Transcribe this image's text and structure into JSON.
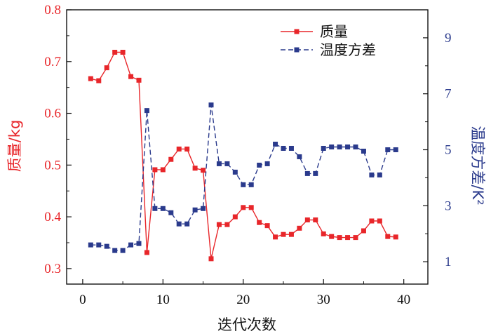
{
  "chart_data": {
    "type": "line",
    "xlabel": "迭代次数",
    "ylabel_left": "质量/kg",
    "ylabel_right": "温度方差/K²",
    "xlim": [
      -2,
      43
    ],
    "ylim_left": [
      0.27,
      0.8
    ],
    "ylim_right": [
      0.2,
      10.0
    ],
    "x_ticks": [
      0,
      10,
      20,
      30,
      40
    ],
    "y_left_ticks": [
      "0.3",
      "0.4",
      "0.5",
      "0.6",
      "0.7",
      "0.8"
    ],
    "y_right_ticks": [
      "1",
      "3",
      "5",
      "7",
      "9"
    ],
    "legend_position": "top-right",
    "grid": false,
    "series": [
      {
        "name": "质量",
        "axis": "left",
        "color": "#e8262a",
        "line_style": "solid",
        "marker": "square",
        "x": [
          1,
          2,
          3,
          4,
          5,
          6,
          7,
          8,
          9,
          10,
          11,
          12,
          13,
          14,
          15,
          16,
          17,
          18,
          19,
          20,
          21,
          22,
          23,
          24,
          25,
          26,
          27,
          28,
          29,
          30,
          31,
          32,
          33,
          34,
          35,
          36,
          37,
          38,
          39
        ],
        "values": [
          0.667,
          0.663,
          0.688,
          0.718,
          0.718,
          0.671,
          0.664,
          0.331,
          0.491,
          0.491,
          0.511,
          0.531,
          0.531,
          0.494,
          0.49,
          0.319,
          0.385,
          0.385,
          0.4,
          0.418,
          0.418,
          0.389,
          0.383,
          0.361,
          0.366,
          0.366,
          0.378,
          0.394,
          0.394,
          0.367,
          0.362,
          0.36,
          0.36,
          0.36,
          0.373,
          0.392,
          0.392,
          0.362,
          0.361
        ]
      },
      {
        "name": "温度方差",
        "axis": "right",
        "color": "#2a3a8c",
        "line_style": "dashed",
        "marker": "square",
        "x": [
          1,
          2,
          3,
          4,
          5,
          6,
          7,
          8,
          9,
          10,
          11,
          12,
          13,
          14,
          15,
          16,
          17,
          18,
          19,
          20,
          21,
          22,
          23,
          24,
          25,
          26,
          27,
          28,
          29,
          30,
          31,
          32,
          33,
          34,
          35,
          36,
          37,
          38,
          39
        ],
        "values": [
          1.6,
          1.6,
          1.55,
          1.4,
          1.4,
          1.6,
          1.65,
          6.4,
          2.9,
          2.9,
          2.75,
          2.35,
          2.35,
          2.85,
          2.9,
          6.6,
          4.5,
          4.5,
          4.2,
          3.75,
          3.75,
          4.45,
          4.5,
          5.2,
          5.05,
          5.05,
          4.75,
          4.15,
          4.15,
          5.05,
          5.1,
          5.1,
          5.1,
          5.1,
          4.95,
          4.1,
          4.1,
          5.0,
          5.0
        ]
      }
    ]
  }
}
